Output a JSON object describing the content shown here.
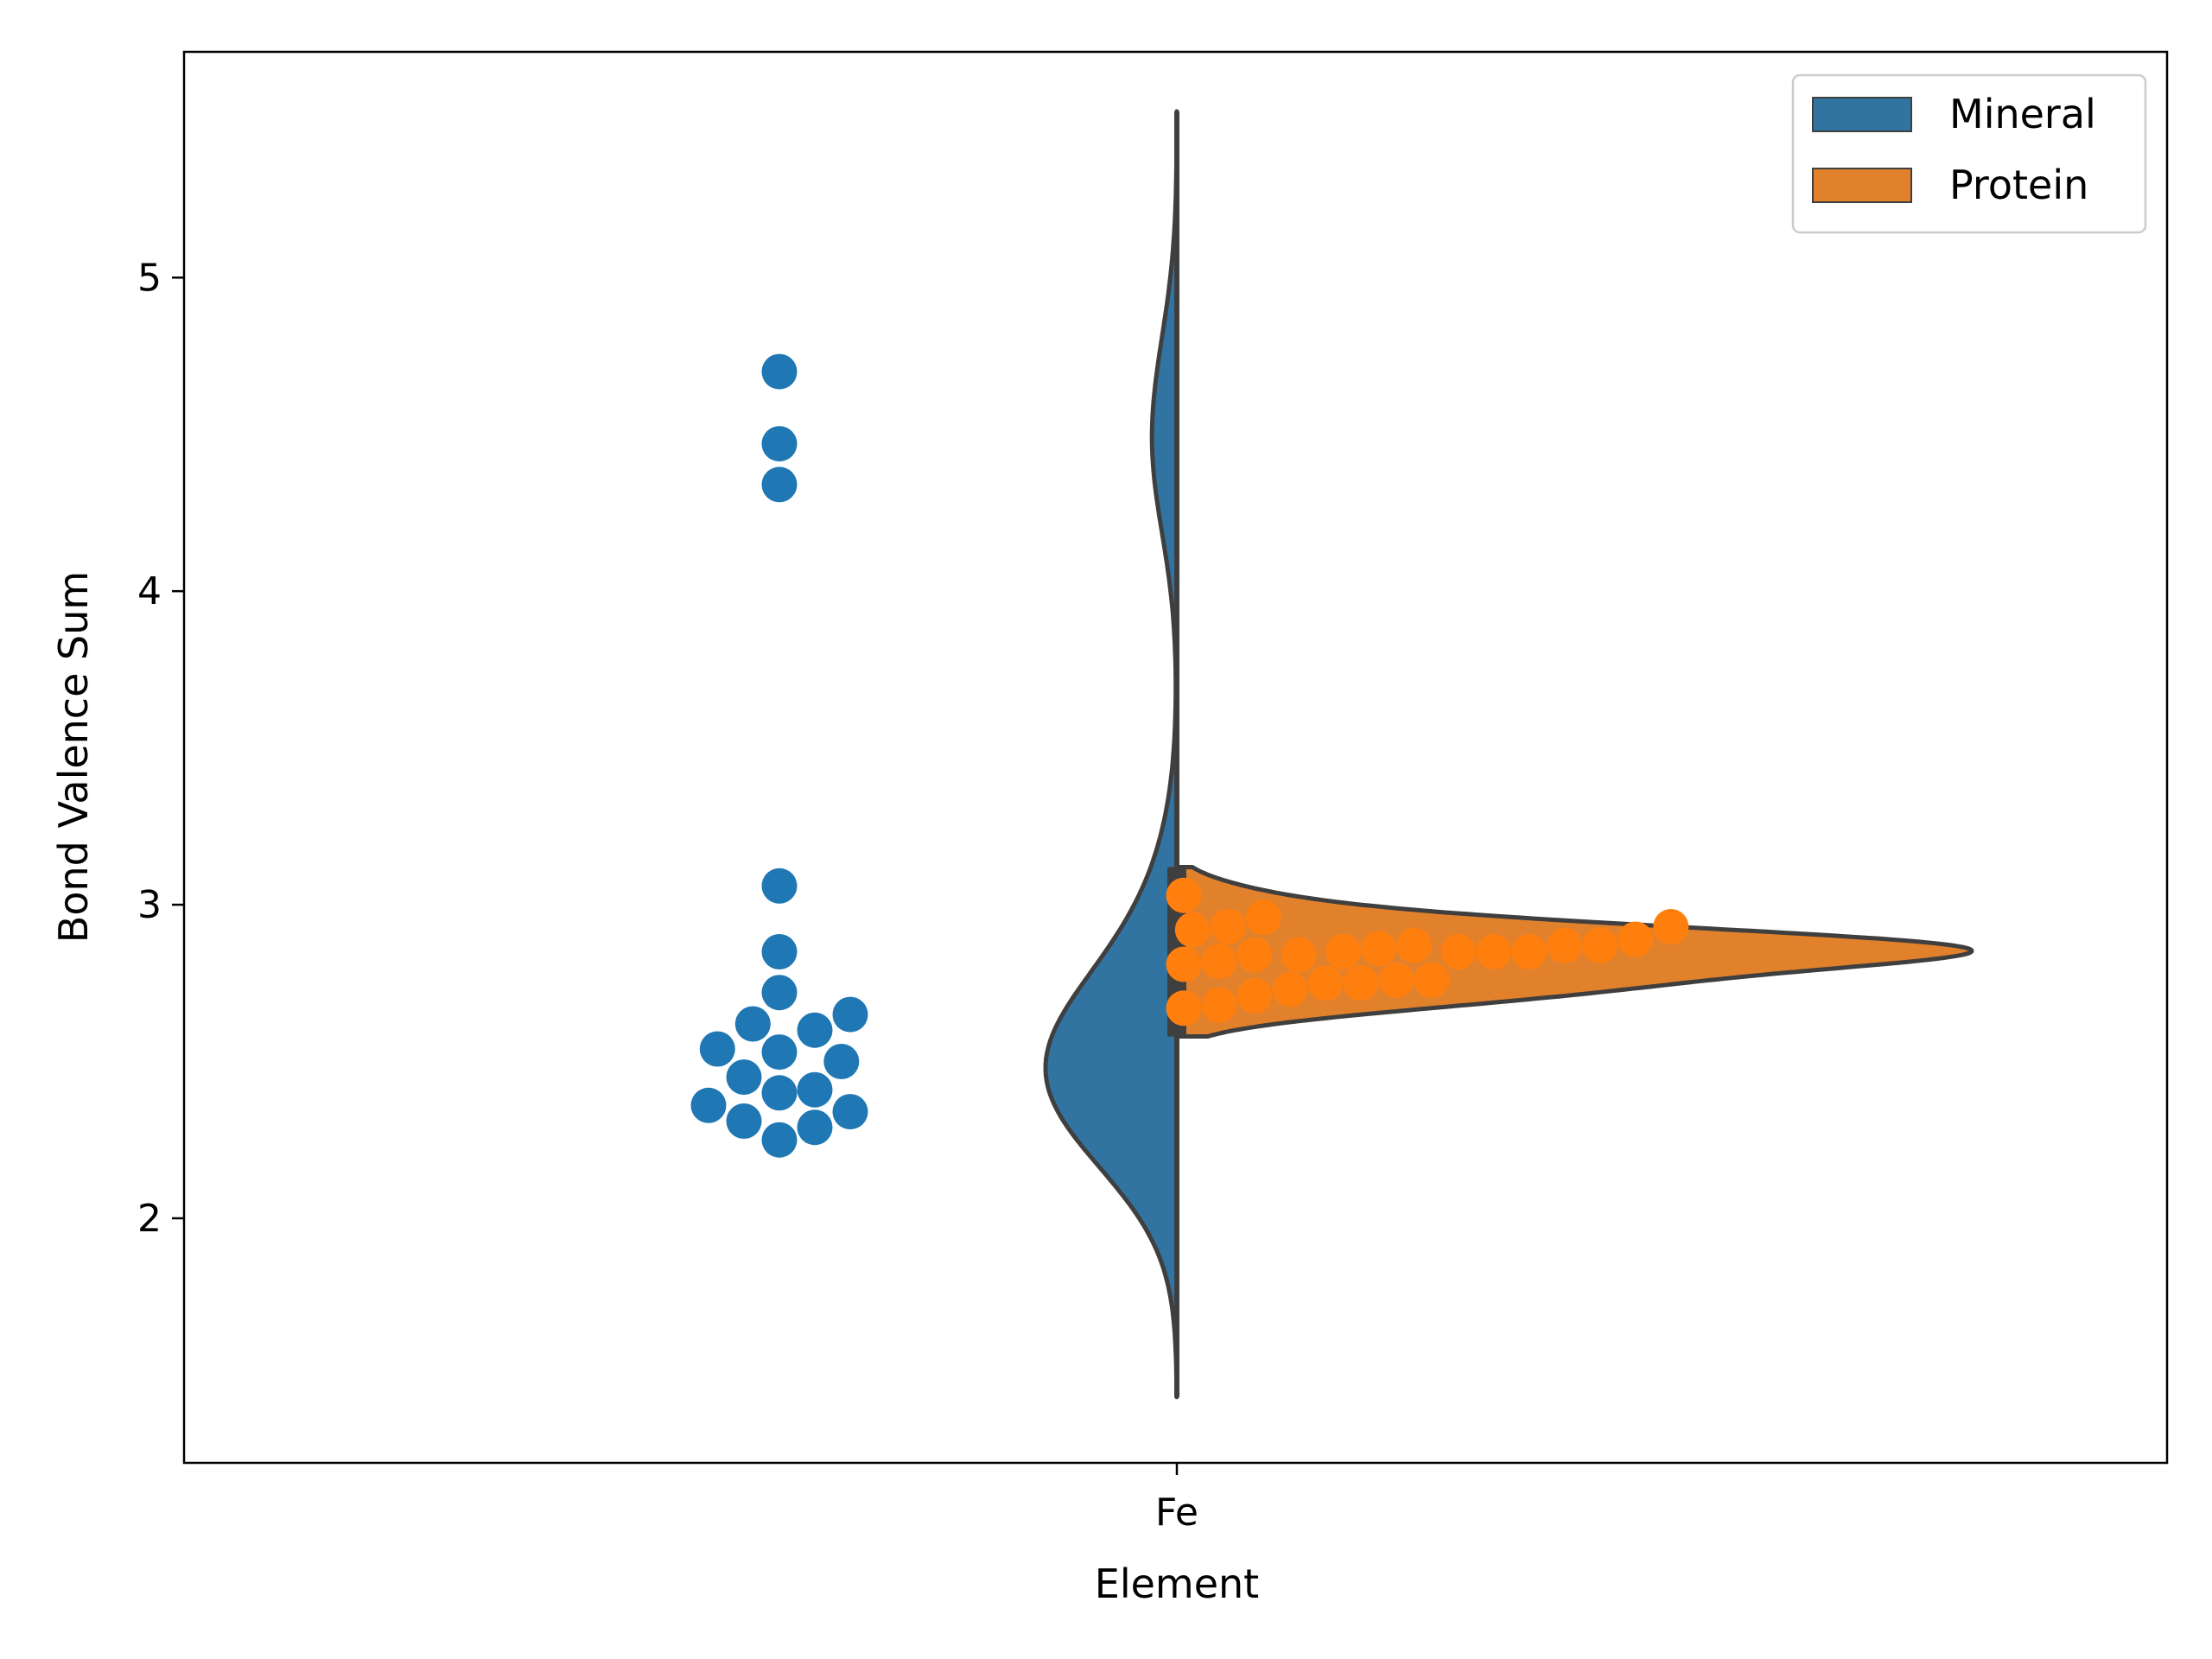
{
  "chart_data": {
    "type": "violin",
    "title": "",
    "xlabel": "Element",
    "ylabel": "Bond Valence Sum",
    "categories": [
      "Fe"
    ],
    "ylim": [
      1.22,
      5.72
    ],
    "yticks": [
      2,
      3,
      4,
      5
    ],
    "ytick_labels": [
      "2",
      "3",
      "4",
      "5"
    ],
    "legend": {
      "placement": "top-right",
      "entries": [
        {
          "name": "Mineral",
          "color": "#3274a1"
        },
        {
          "name": "Protein",
          "color": "#e1812c"
        }
      ]
    },
    "series": [
      {
        "name": "Mineral",
        "color": "#3274a1",
        "point_color": "#1f77b4",
        "violin_side": "left",
        "violin_range": [
          1.43,
          5.53
        ],
        "points": [
          4.7,
          4.47,
          4.34,
          3.06,
          2.85,
          2.72,
          2.65,
          2.62,
          2.6,
          2.54,
          2.53,
          2.5,
          2.45,
          2.41,
          2.4,
          2.36,
          2.34,
          2.31,
          2.29,
          2.25
        ]
      },
      {
        "name": "Protein",
        "color": "#e1812c",
        "point_color": "#ff7f0e",
        "violin_side": "right",
        "violin_range": [
          2.58,
          3.12
        ],
        "points": [
          2.93,
          2.92,
          2.87,
          2.85,
          2.85,
          2.87,
          2.86,
          2.82,
          2.81,
          2.85,
          2.87,
          2.84,
          2.84,
          2.85,
          2.89,
          2.93,
          2.96,
          3.03,
          2.76,
          2.76,
          2.73,
          2.68,
          2.67,
          2.71,
          2.75,
          2.75
        ]
      }
    ],
    "box": {
      "q1": 2.58,
      "median": 2.78,
      "q3": 3.12
    }
  }
}
